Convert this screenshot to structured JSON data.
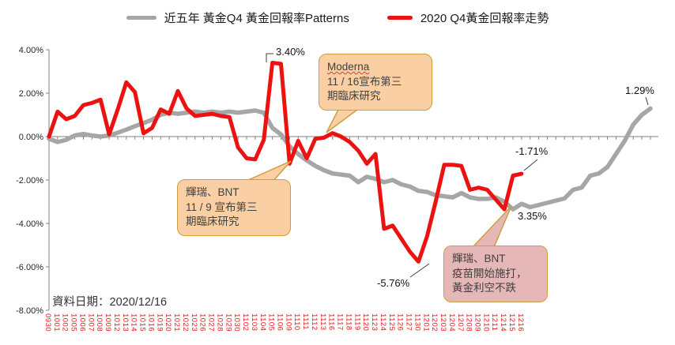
{
  "legend": {
    "series1": "近五年 黃金Q4 黃金回報率Patterns",
    "series2": "2020 Q4黃金回報率走勢"
  },
  "footer": {
    "data_date": "資料日期：2020/12/16"
  },
  "annotations": {
    "peak": "3.40%",
    "trough": "-5.76%",
    "red_end": "-1.71%",
    "gray_end": "1.29%",
    "cross": "3.35%"
  },
  "callouts": {
    "moderna": {
      "lines": [
        "Moderna",
        "11 / 16宣布第三",
        "期臨床研究"
      ]
    },
    "pfizer_trial": {
      "lines": [
        "輝瑞、BNT",
        "11 / 9 宣布第三",
        "期臨床研究"
      ]
    },
    "pfizer_vaccine": {
      "lines": [
        "輝瑞、BNT",
        "疫苗開始施打，",
        "黃金利空不跌"
      ]
    }
  },
  "colors": {
    "red_line": "#ed1212",
    "gray_line": "#a6a6a6",
    "x_label_red": "#f01414",
    "axis": "#808080",
    "callout_border": "#cf9d3e",
    "callout_peach": "#fbcfa4",
    "callout_pink": "#e5b8b7"
  },
  "chart_data": {
    "type": "line",
    "title": "",
    "xlabel": "",
    "ylabel": "",
    "ylim": [
      -8,
      4
    ],
    "grid": false,
    "legend_position": "top",
    "y_tick_labels": [
      "4.00%",
      "2.00%",
      "0.00%",
      "-2.00%",
      "-4.00%",
      "-6.00%",
      "-8.00%"
    ],
    "x_tick_labels": [
      "0930",
      "1001",
      "1002",
      "1005",
      "1006",
      "1007",
      "1008",
      "1009",
      "1012",
      "1013",
      "1014",
      "1015",
      "1016",
      "1019",
      "1020",
      "1021",
      "1022",
      "1023",
      "1026",
      "1027",
      "1028",
      "1029",
      "1030",
      "1102",
      "1103",
      "1104",
      "1105",
      "1106",
      "1109",
      "1110",
      "1111",
      "1112",
      "1113",
      "1116",
      "1117",
      "1118",
      "1119",
      "1120",
      "1123",
      "1124",
      "1125",
      "1126",
      "1127",
      "1130",
      "1201",
      "1202",
      "1203",
      "1204",
      "1207",
      "1208",
      "1209",
      "1210",
      "1211",
      "1214",
      "1215",
      "1216"
    ],
    "n_extended_unlabeled_x": 15,
    "series": [
      {
        "name": "近五年 黃金Q4 黃金回報率Patterns",
        "color": "#a6a6a6",
        "values": [
          -0.1,
          -0.25,
          -0.15,
          0.05,
          0.12,
          0.05,
          0.0,
          0.05,
          0.18,
          0.32,
          0.48,
          0.62,
          0.78,
          1.0,
          1.1,
          1.05,
          1.1,
          1.15,
          1.1,
          1.15,
          1.1,
          1.15,
          1.1,
          1.15,
          1.2,
          1.1,
          0.4,
          0.1,
          -0.45,
          -0.8,
          -1.1,
          -1.35,
          -1.55,
          -1.7,
          -1.75,
          -1.8,
          -2.1,
          -1.85,
          -1.95,
          -2.1,
          -2.0,
          -2.2,
          -2.3,
          -2.5,
          -2.55,
          -2.7,
          -2.75,
          -2.8,
          -2.6,
          -2.8,
          -2.87,
          -2.87,
          -2.8,
          -3.0,
          -3.35,
          -3.1,
          -3.25,
          -3.15,
          -3.05,
          -2.95,
          -2.85,
          -2.45,
          -2.35,
          -1.8,
          -1.7,
          -1.4,
          -0.8,
          -0.2,
          0.55,
          1.0,
          1.29
        ]
      },
      {
        "name": "2020 Q4黃金回報率走勢",
        "color": "#ed1212",
        "values": [
          0.0,
          1.15,
          0.8,
          0.95,
          1.45,
          1.55,
          1.7,
          0.1,
          1.25,
          2.5,
          2.05,
          0.15,
          0.4,
          1.25,
          1.05,
          2.1,
          1.3,
          0.95,
          1.0,
          1.05,
          0.95,
          0.9,
          -0.5,
          -1.0,
          -1.05,
          -0.15,
          3.4,
          3.35,
          -1.25,
          -0.2,
          -1.0,
          -0.1,
          -0.05,
          0.16,
          0.0,
          -0.25,
          -0.65,
          -1.25,
          -0.8,
          -4.25,
          -4.1,
          -4.7,
          -5.3,
          -5.76,
          -4.6,
          -3.0,
          -1.3,
          -1.3,
          -1.35,
          -2.45,
          -2.35,
          -2.45,
          -2.9,
          -3.35,
          -1.8,
          -1.71
        ]
      }
    ]
  }
}
